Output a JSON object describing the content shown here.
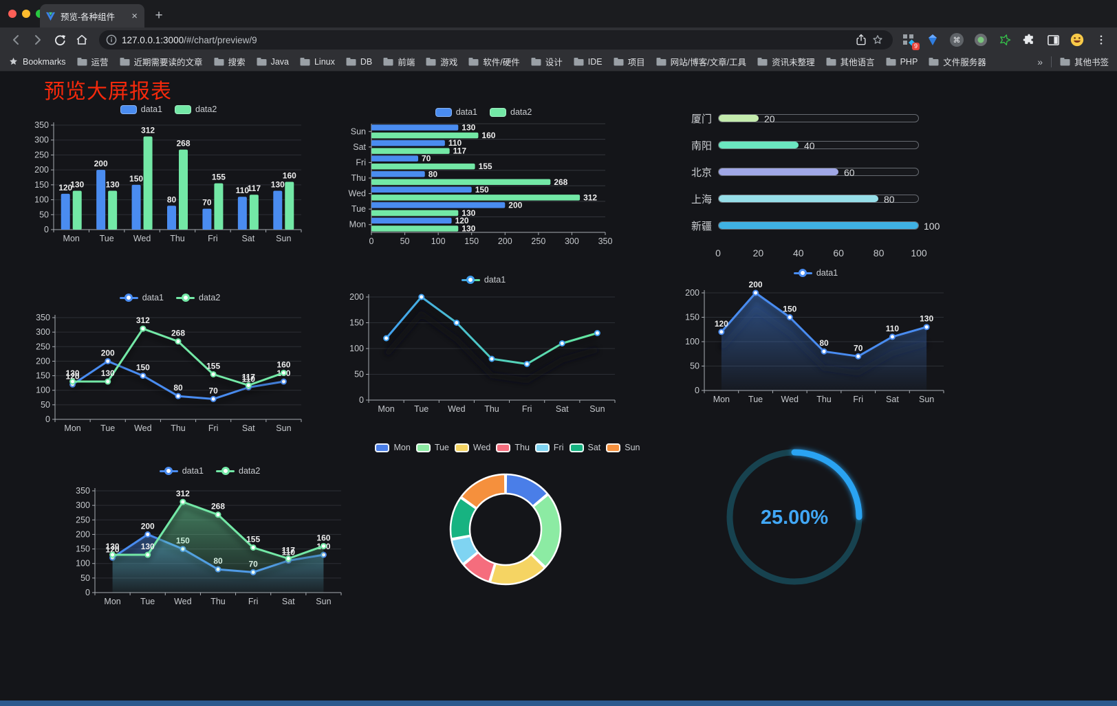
{
  "browser": {
    "tab": {
      "title": "预览-各种组件",
      "close_glyph": "×"
    },
    "new_tab_glyph": "+",
    "toolbar": {
      "url_host": "127.0.0.1:3000",
      "url_path": "/#/chart/preview/9",
      "badge_count": "9"
    },
    "bookmarks": {
      "label": "Bookmarks",
      "folders": [
        "运营",
        "近期需要读的文章",
        "搜索",
        "Java",
        "Linux",
        "DB",
        "前端",
        "游戏",
        "软件/硬件",
        "设计",
        "IDE",
        "项目",
        "网站/博客/文章/工具",
        "资讯未整理",
        "其他语言",
        "PHP",
        "文件服务器"
      ],
      "overflow_glyph": "»",
      "other": "其他书签"
    }
  },
  "page": {
    "title": "预览大屏报表",
    "title_color": "#f4290c",
    "background": "#141519"
  },
  "chart_data": [
    {
      "id": "bar-vertical",
      "type": "bar",
      "legend_position": "top",
      "categories": [
        "Mon",
        "Tue",
        "Wed",
        "Thu",
        "Fri",
        "Sat",
        "Sun"
      ],
      "series": [
        {
          "name": "data1",
          "color": "#4a8cf0",
          "values": [
            120,
            200,
            150,
            80,
            70,
            110,
            130
          ]
        },
        {
          "name": "data2",
          "color": "#73e8a6",
          "values": [
            130,
            130,
            312,
            268,
            155,
            117,
            160
          ]
        }
      ],
      "ylim": [
        0,
        350
      ],
      "yticks": [
        0,
        50,
        100,
        150,
        200,
        250,
        300,
        350
      ],
      "grid": true,
      "value_labels": true
    },
    {
      "id": "bar-horizontal",
      "type": "bar",
      "orientation": "horizontal",
      "display_order": "Sun-top-to-Mon-bottom",
      "categories": [
        "Mon",
        "Tue",
        "Wed",
        "Thu",
        "Fri",
        "Sat",
        "Sun"
      ],
      "series": [
        {
          "name": "data1",
          "color": "#4a8cf0",
          "values": [
            120,
            200,
            150,
            80,
            70,
            110,
            130
          ]
        },
        {
          "name": "data2",
          "color": "#73e8a6",
          "values": [
            130,
            130,
            312,
            268,
            155,
            117,
            160
          ]
        }
      ],
      "xlim": [
        0,
        350
      ],
      "xticks": [
        0,
        50,
        100,
        150,
        200,
        250,
        300,
        350
      ],
      "value_labels": true
    },
    {
      "id": "progress-list",
      "type": "bar",
      "orientation": "progress",
      "max": 100,
      "items": [
        {
          "label": "厦门",
          "value": 20,
          "color": "#c4ebad"
        },
        {
          "label": "南阳",
          "value": 40,
          "color": "#6be6c1"
        },
        {
          "label": "北京",
          "value": 60,
          "color": "#a0a7e6"
        },
        {
          "label": "上海",
          "value": 80,
          "color": "#96dee8"
        },
        {
          "label": "新疆",
          "value": 100,
          "color": "#3fb1e3"
        }
      ],
      "xticks": [
        0,
        20,
        40,
        60,
        80,
        100
      ]
    },
    {
      "id": "line-multi",
      "type": "line",
      "legend_position": "top",
      "categories": [
        "Mon",
        "Tue",
        "Wed",
        "Thu",
        "Fri",
        "Sat",
        "Sun"
      ],
      "series": [
        {
          "name": "data1",
          "color": "#4a8cf0",
          "values": [
            120,
            200,
            150,
            80,
            70,
            110,
            130
          ]
        },
        {
          "name": "data2",
          "color": "#73e8a6",
          "values": [
            130,
            130,
            312,
            268,
            155,
            117,
            160
          ]
        }
      ],
      "ylim": [
        0,
        350
      ],
      "yticks": [
        0,
        50,
        100,
        150,
        200,
        250,
        300,
        350
      ],
      "value_labels": true
    },
    {
      "id": "line-gradient",
      "type": "line",
      "legend_position": "top",
      "categories": [
        "Mon",
        "Tue",
        "Wed",
        "Thu",
        "Fri",
        "Sat",
        "Sun"
      ],
      "series": [
        {
          "name": "data1",
          "color_gradient": [
            "#41a0f0",
            "#4fcdc0",
            "#66e89e"
          ],
          "values": [
            120,
            200,
            150,
            80,
            70,
            110,
            130
          ]
        }
      ],
      "ylim": [
        0,
        200
      ],
      "yticks": [
        0,
        50,
        100,
        150,
        200
      ],
      "value_labels": false,
      "shadow": true
    },
    {
      "id": "area-single",
      "type": "area",
      "legend_position": "top",
      "categories": [
        "Mon",
        "Tue",
        "Wed",
        "Thu",
        "Fri",
        "Sat",
        "Sun"
      ],
      "series": [
        {
          "name": "data1",
          "color": "#4a8cf0",
          "area": true,
          "values": [
            120,
            200,
            150,
            80,
            70,
            110,
            130
          ]
        }
      ],
      "ylim": [
        0,
        200
      ],
      "yticks": [
        0,
        50,
        100,
        150,
        200
      ],
      "value_labels": true,
      "shadow": true
    },
    {
      "id": "area-multi",
      "type": "area",
      "legend_position": "top",
      "categories": [
        "Mon",
        "Tue",
        "Wed",
        "Thu",
        "Fri",
        "Sat",
        "Sun"
      ],
      "series": [
        {
          "name": "data1",
          "color": "#4a8cf0",
          "area": true,
          "values": [
            120,
            200,
            150,
            80,
            70,
            110,
            130
          ]
        },
        {
          "name": "data2",
          "color": "#73e8a6",
          "area": true,
          "values": [
            130,
            130,
            312,
            268,
            155,
            117,
            160
          ]
        }
      ],
      "ylim": [
        0,
        350
      ],
      "yticks": [
        0,
        50,
        100,
        150,
        200,
        250,
        300,
        350
      ],
      "value_labels": true
    },
    {
      "id": "donut",
      "type": "pie",
      "inner_radius_ratio": 0.65,
      "legend_position": "top",
      "slices": [
        {
          "label": "Mon",
          "value": 120,
          "color": "#4a7ee8"
        },
        {
          "label": "Tue",
          "value": 200,
          "color": "#8ceba3"
        },
        {
          "label": "Wed",
          "value": 150,
          "color": "#f5d463"
        },
        {
          "label": "Thu",
          "value": 80,
          "color": "#f56d7d"
        },
        {
          "label": "Fri",
          "value": 70,
          "color": "#7fd4f2"
        },
        {
          "label": "Sat",
          "value": 110,
          "color": "#17b381"
        },
        {
          "label": "Sun",
          "value": 130,
          "color": "#f5903d"
        }
      ]
    },
    {
      "id": "gauge",
      "type": "gauge",
      "value_percent": 25,
      "display": "25.00%",
      "progress_color": "#2aa3f2",
      "track_color": "#17424f",
      "text_color": "#41a7f5"
    }
  ]
}
